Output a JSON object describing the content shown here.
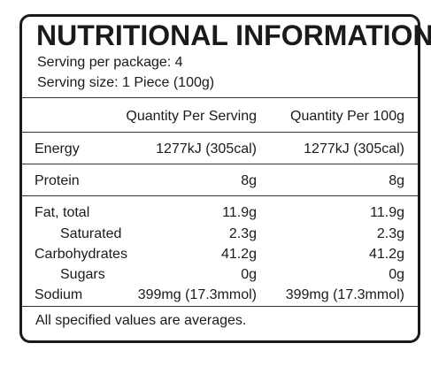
{
  "title": "NUTRITIONAL INFORMATION",
  "serving_per_package": "Serving per package: 4",
  "serving_size": "Serving size:  1 Piece (100g)",
  "columns": {
    "per_serving": "Quantity Per Serving",
    "per_100g": "Quantity Per 100g"
  },
  "rows": [
    {
      "label": "Energy",
      "per_serving": "1277kJ (305cal)",
      "per_100g": "1277kJ (305cal)"
    },
    {
      "label": "Protein",
      "per_serving": "8g",
      "per_100g": "8g"
    },
    {
      "label": "Fat, total",
      "per_serving": "11.9g",
      "per_100g": "11.9g"
    },
    {
      "label": "Saturated",
      "per_serving": "2.3g",
      "per_100g": "2.3g"
    },
    {
      "label": "Carbohydrates",
      "per_serving": "41.2g",
      "per_100g": "41.2g"
    },
    {
      "label": "Sugars",
      "per_serving": "0g",
      "per_100g": "0g"
    },
    {
      "label": "Sodium",
      "per_serving": "399mg (17.3mmol)",
      "per_100g": "399mg (17.3mmol)"
    }
  ],
  "footnote": "All specified values are averages."
}
